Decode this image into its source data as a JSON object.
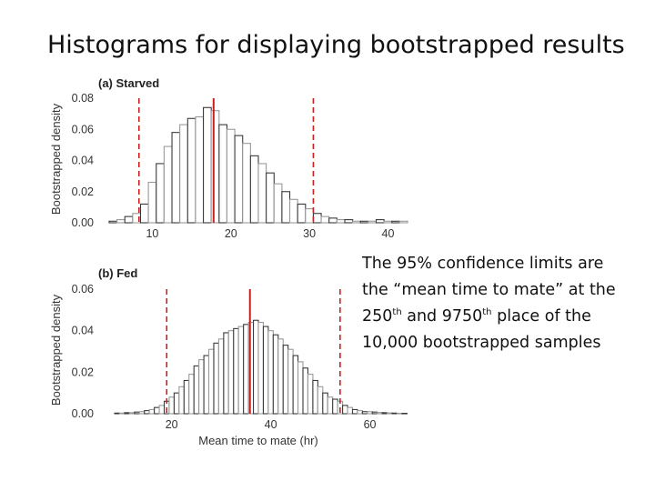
{
  "slide": {
    "title": "Histograms for displaying bootstrapped results",
    "caption": {
      "line1": "The 95% confidence limits are",
      "line2": "the “mean time to mate” at the",
      "line3_a": "250",
      "line3_sup1": "th",
      "line3_b": " and 9750",
      "line3_sup2": "th",
      "line3_c": " place of the",
      "line4": "10,000 bootstrapped samples"
    }
  },
  "chart_data": [
    {
      "type": "bar",
      "title": "(a) Starved",
      "xlabel": "",
      "ylabel": "Bootstrapped density",
      "xlim": [
        3,
        44
      ],
      "ylim": [
        0,
        0.08
      ],
      "x_ticks": [
        10,
        20,
        30,
        40
      ],
      "y_ticks": [
        "0.00",
        "0.02",
        "0.04",
        "0.06",
        "0.08"
      ],
      "bin_width": 1,
      "x": [
        5,
        6,
        7,
        8,
        9,
        10,
        11,
        12,
        13,
        14,
        15,
        16,
        17,
        18,
        19,
        20,
        21,
        22,
        23,
        24,
        25,
        26,
        27,
        28,
        29,
        30,
        31,
        32,
        33,
        34,
        35,
        36,
        37,
        38,
        39,
        40,
        41,
        42
      ],
      "values": [
        0.001,
        0.002,
        0.004,
        0.006,
        0.012,
        0.026,
        0.038,
        0.049,
        0.058,
        0.063,
        0.067,
        0.068,
        0.074,
        0.072,
        0.063,
        0.06,
        0.056,
        0.051,
        0.043,
        0.038,
        0.032,
        0.025,
        0.02,
        0.015,
        0.012,
        0.009,
        0.006,
        0.004,
        0.003,
        0.002,
        0.002,
        0.001,
        0.001,
        0.001,
        0.002,
        0.001,
        0.001,
        0.001
      ],
      "lower_limit": 8.3,
      "upper_limit": 30.5,
      "mean": 17.8,
      "line_color": "#c82020"
    },
    {
      "type": "bar",
      "title": "(b) Fed",
      "xlabel": "Mean time to mate (hr)",
      "ylabel": "Bootstrapped density",
      "xlim": [
        5,
        70
      ],
      "ylim": [
        0,
        0.06
      ],
      "x_ticks": [
        20,
        40,
        60
      ],
      "y_ticks": [
        "0.00",
        "0.02",
        "0.04",
        "0.06"
      ],
      "bin_width": 1,
      "x": [
        9,
        10,
        11,
        12,
        13,
        14,
        15,
        16,
        17,
        18,
        19,
        20,
        21,
        22,
        23,
        24,
        25,
        26,
        27,
        28,
        29,
        30,
        31,
        32,
        33,
        34,
        35,
        36,
        37,
        38,
        39,
        40,
        41,
        42,
        43,
        44,
        45,
        46,
        47,
        48,
        49,
        50,
        51,
        52,
        53,
        54,
        55,
        56,
        57,
        58,
        59,
        60,
        61,
        62,
        63,
        64,
        65,
        66,
        67
      ],
      "values": [
        0.0003,
        0.0003,
        0.0005,
        0.0005,
        0.0008,
        0.001,
        0.0015,
        0.002,
        0.003,
        0.004,
        0.006,
        0.008,
        0.01,
        0.013,
        0.016,
        0.019,
        0.023,
        0.026,
        0.028,
        0.031,
        0.034,
        0.036,
        0.039,
        0.04,
        0.041,
        0.042,
        0.043,
        0.044,
        0.045,
        0.044,
        0.042,
        0.04,
        0.038,
        0.036,
        0.033,
        0.031,
        0.028,
        0.025,
        0.022,
        0.019,
        0.016,
        0.013,
        0.01,
        0.008,
        0.007,
        0.006,
        0.004,
        0.003,
        0.002,
        0.0015,
        0.001,
        0.001,
        0.0008,
        0.0006,
        0.0005,
        0.0004,
        0.0003,
        0.0002,
        0.0002
      ],
      "lower_limit": 19,
      "upper_limit": 54,
      "mean": 35.8,
      "line_color": "#c82020"
    }
  ]
}
